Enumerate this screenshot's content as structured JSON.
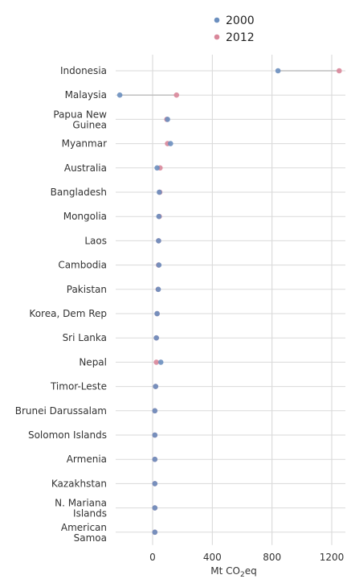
{
  "chart_data": {
    "type": "scatter",
    "title": "",
    "xlabel": "Mt CO",
    "xlabel_sub": "2",
    "xlabel_suffix": "eq",
    "ylabel": "",
    "xlim": [
      -250,
      1340
    ],
    "x_ticks": [
      0,
      400,
      800,
      1200
    ],
    "grid": true,
    "legend_position": "top",
    "categories": [
      [
        "Indonesia"
      ],
      [
        "Malaysia"
      ],
      [
        "Papua New",
        "Guinea"
      ],
      [
        "Myanmar"
      ],
      [
        "Australia"
      ],
      [
        "Bangladesh"
      ],
      [
        "Mongolia"
      ],
      [
        "Laos"
      ],
      [
        "Cambodia"
      ],
      [
        "Pakistan"
      ],
      [
        "Korea, Dem Rep"
      ],
      [
        "Sri Lanka"
      ],
      [
        "Nepal"
      ],
      [
        "Timor-Leste"
      ],
      [
        "Brunei Darussalam"
      ],
      [
        "Solomon Islands"
      ],
      [
        "Armenia"
      ],
      [
        "Kazakhstan"
      ],
      [
        "N. Mariana",
        "Islands"
      ],
      [
        "American",
        "Samoa"
      ]
    ],
    "series": [
      {
        "name": "2000",
        "color": "#6b8fbf",
        "values": [
          840,
          -220,
          100,
          120,
          30,
          45,
          42,
          40,
          42,
          38,
          30,
          25,
          55,
          20,
          15,
          15,
          15,
          15,
          15,
          15
        ]
      },
      {
        "name": "2012",
        "color": "#d9879a",
        "values": [
          1250,
          160,
          95,
          100,
          50,
          48,
          45,
          40,
          40,
          37,
          30,
          25,
          25,
          20,
          15,
          15,
          15,
          15,
          15,
          15
        ]
      }
    ]
  }
}
